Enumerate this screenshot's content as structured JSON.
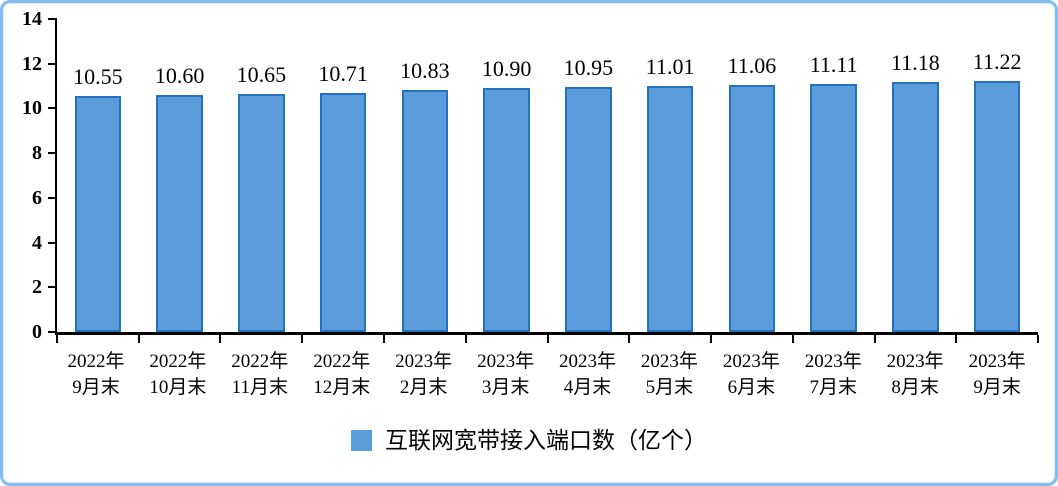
{
  "frame": {
    "border_color": "#85BCEE",
    "background": "#FFFFFF"
  },
  "chart_data": {
    "type": "bar",
    "title": "",
    "xlabel": "",
    "ylabel": "",
    "categories": [
      [
        "2022年",
        "9月末"
      ],
      [
        "2022年",
        "10月末"
      ],
      [
        "2022年",
        "11月末"
      ],
      [
        "2022年",
        "12月末"
      ],
      [
        "2023年",
        "2月末"
      ],
      [
        "2023年",
        "3月末"
      ],
      [
        "2023年",
        "4月末"
      ],
      [
        "2023年",
        "5月末"
      ],
      [
        "2023年",
        "6月末"
      ],
      [
        "2023年",
        "7月末"
      ],
      [
        "2023年",
        "8月末"
      ],
      [
        "2023年",
        "9月末"
      ]
    ],
    "values": [
      10.55,
      10.6,
      10.65,
      10.71,
      10.83,
      10.9,
      10.95,
      11.01,
      11.06,
      11.11,
      11.18,
      11.22
    ],
    "value_labels": [
      "10.55",
      "10.60",
      "10.65",
      "10.71",
      "10.83",
      "10.90",
      "10.95",
      "11.01",
      "11.06",
      "11.11",
      "11.18",
      "11.22"
    ],
    "ylim": [
      0,
      14
    ],
    "y_ticks": [
      0,
      2,
      4,
      6,
      8,
      10,
      12,
      14
    ],
    "grid": false,
    "legend": {
      "label": "互联网宽带接入端口数（亿个）",
      "position": "bottom-center"
    },
    "colors": {
      "bar_fill": "#5B9DDB",
      "bar_border": "#2471BE",
      "axis": "#000000",
      "text": "#000000"
    }
  }
}
